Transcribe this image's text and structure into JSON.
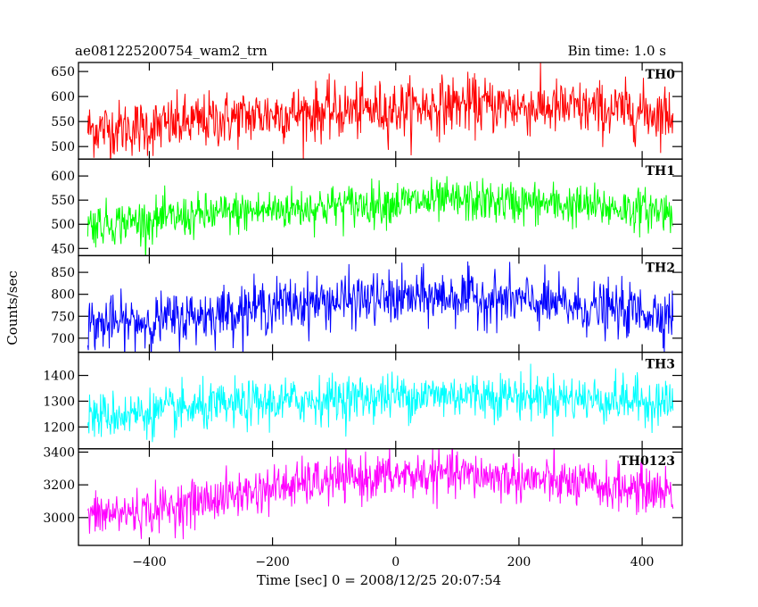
{
  "chart_data": {
    "type": "line",
    "title": "ae081225200754_wam2_trn",
    "bin_time_label": "Bin time: 1.0 s",
    "xlabel": "Time [sec] 0 = 2008/12/25 20:07:54",
    "ylabel": "Counts/sec",
    "xlim": [
      -515,
      465
    ],
    "x_data_range": [
      -500,
      450
    ],
    "x_ticks": [
      -400,
      -200,
      0,
      200,
      400
    ],
    "x_tick_labels": [
      "−400",
      "−200",
      "0",
      "200",
      "400"
    ],
    "panels": [
      {
        "name": "TH0",
        "color": "#ff0000",
        "ylim": [
          475,
          668
        ],
        "y_ticks": [
          500,
          550,
          600,
          650
        ],
        "y_tick_labels": [
          "500",
          "550",
          "600",
          "650"
        ],
        "trend": [
          [
            -500,
            535
          ],
          [
            -400,
            538
          ],
          [
            -300,
            552
          ],
          [
            -200,
            565
          ],
          [
            -100,
            570
          ],
          [
            0,
            575
          ],
          [
            100,
            585
          ],
          [
            200,
            580
          ],
          [
            300,
            575
          ],
          [
            400,
            570
          ],
          [
            450,
            565
          ]
        ],
        "noise": 28
      },
      {
        "name": "TH1",
        "color": "#00ff00",
        "ylim": [
          435,
          635
        ],
        "y_ticks": [
          450,
          500,
          550,
          600
        ],
        "y_tick_labels": [
          "450",
          "500",
          "550",
          "600"
        ],
        "trend": [
          [
            -500,
            500
          ],
          [
            -400,
            508
          ],
          [
            -300,
            520
          ],
          [
            -200,
            530
          ],
          [
            -100,
            538
          ],
          [
            0,
            545
          ],
          [
            100,
            548
          ],
          [
            200,
            545
          ],
          [
            300,
            538
          ],
          [
            400,
            530
          ],
          [
            450,
            528
          ]
        ],
        "noise": 22
      },
      {
        "name": "TH2",
        "color": "#0000ff",
        "ylim": [
          668,
          888
        ],
        "y_ticks": [
          700,
          750,
          800,
          850
        ],
        "y_tick_labels": [
          "700",
          "750",
          "800",
          "850"
        ],
        "trend": [
          [
            -500,
            730
          ],
          [
            -400,
            738
          ],
          [
            -300,
            755
          ],
          [
            -200,
            775
          ],
          [
            -100,
            785
          ],
          [
            0,
            790
          ],
          [
            100,
            795
          ],
          [
            200,
            785
          ],
          [
            300,
            770
          ],
          [
            400,
            760
          ],
          [
            450,
            755
          ]
        ],
        "noise": 30
      },
      {
        "name": "TH3",
        "color": "#00ffff",
        "ylim": [
          1115,
          1490
        ],
        "y_ticks": [
          1200,
          1300,
          1400
        ],
        "y_tick_labels": [
          "1200",
          "1300",
          "1400"
        ],
        "trend": [
          [
            -500,
            1240
          ],
          [
            -400,
            1255
          ],
          [
            -300,
            1275
          ],
          [
            -200,
            1295
          ],
          [
            -100,
            1310
          ],
          [
            0,
            1320
          ],
          [
            100,
            1325
          ],
          [
            200,
            1320
          ],
          [
            300,
            1310
          ],
          [
            400,
            1300
          ],
          [
            450,
            1295
          ]
        ],
        "noise": 45
      },
      {
        "name": "TH0123",
        "color": "#ff00ff",
        "ylim": [
          2830,
          3420
        ],
        "y_ticks": [
          3000,
          3200,
          3400
        ],
        "y_tick_labels": [
          "3000",
          "3200",
          "3400"
        ],
        "trend": [
          [
            -500,
            3010
          ],
          [
            -400,
            3040
          ],
          [
            -300,
            3110
          ],
          [
            -200,
            3180
          ],
          [
            -100,
            3230
          ],
          [
            0,
            3255
          ],
          [
            100,
            3265
          ],
          [
            200,
            3240
          ],
          [
            300,
            3200
          ],
          [
            400,
            3170
          ],
          [
            450,
            3160
          ]
        ],
        "noise": 70
      }
    ]
  }
}
